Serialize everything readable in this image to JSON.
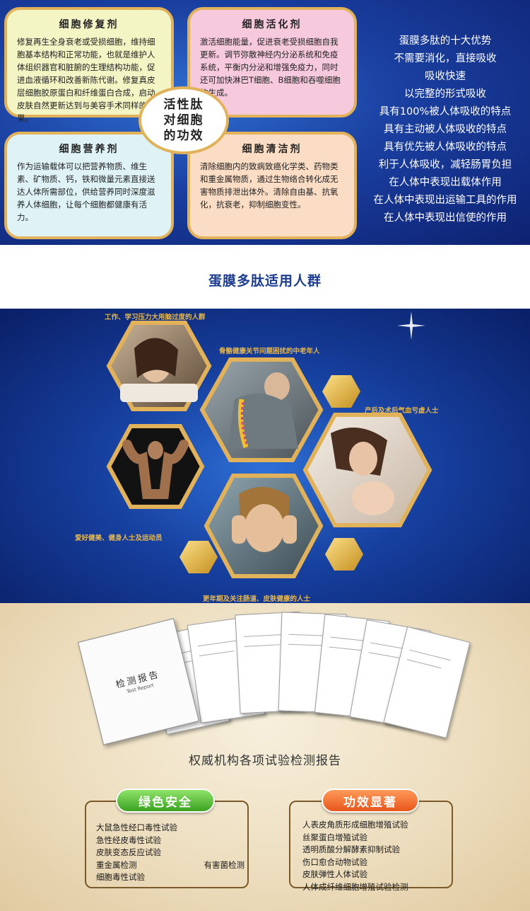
{
  "cells": {
    "repair": {
      "title": "细胞修复剂",
      "text": "修复再生全身衰老或受损细胞，维持细胞基本结构和正常功能，也就是维护人体组织器官和脏腑的生理结构功能，促进血液循环和改善新陈代谢。修复真皮层细胞胶原蛋白和纤维蛋白合成，启动皮肤自然更新达到与美容手术同样的效果。"
    },
    "activate": {
      "title": "细胞活化剂",
      "text": "激活细胞能量，促进衰老受损细胞自我更新。调节弥散神经内分泌系统和免疫系统，平衡内分泌和增强免疫力，同时还可加快淋巴T细胞、B细胞和吞噬细胞的生成。"
    },
    "nutrition": {
      "title": "细胞营养剂",
      "text": "作为运输载体可以把营养物质、维生素、矿物质、钙，铁和微量元素直接送达人体所需部位，供给营养同时深度滋养人体细胞，让每个细胞都健康有活力。"
    },
    "clean": {
      "title": "细胞清洁剂",
      "text": "清除细胞内的致病致癌化学类、药物类和重金属物质，通过生物络合转化成无害物质排泄出体外。清除自由基、抗氧化，抗衰老，抑制细胞变性。"
    },
    "center": [
      "活性肽",
      "对细胞",
      "的功效"
    ]
  },
  "advantages": {
    "title": "蛋膜多肽的十大优势",
    "items": [
      "不需要消化，直接吸收",
      "吸收快速",
      "以完整的形式吸收",
      "具有100%被人体吸收的特点",
      "具有主动被人体吸收的特点",
      "具有优先被人体吸收的特点",
      "利于人体吸收，减轻肠胃负担",
      "在人体中表现出载体作用",
      "在人体中表现出运输工具的作用",
      "在人体中表现出信使的作用"
    ]
  },
  "groups": {
    "title": "蛋膜多肽适用人群",
    "captions": [
      "工作、学习压力大用脑过度的人群",
      "骨骼健康关节问题困扰的中老年人",
      "产后及术后气血亏虚人士",
      "爱好健美、健身人士及运动员",
      "更年期及关注肠道、皮肤健康的人士"
    ]
  },
  "reports": {
    "cover_title": "检测报告",
    "cover_subtitle": "Test Report",
    "caption": "权威机构各项试验检测报告"
  },
  "safety": {
    "badge": "绿色安全",
    "items": [
      "大鼠急性经口毒性试验",
      "急性经皮毒性试验",
      "皮肤变态反应试验",
      "重金属检测",
      "细胞毒性试验"
    ],
    "extra": "有害菌检测"
  },
  "efficacy": {
    "badge": "功效显著",
    "items": [
      "人表皮角质形成细胞增殖试验",
      "丝聚蛋白增殖试验",
      "透明质酸分解酵素抑制试验",
      "伤口愈合动物试验",
      "皮肤弹性人体试验",
      "人体成纤维细胞增殖试验检测"
    ]
  },
  "colors": {
    "gold": "#e2b25a",
    "navy": "#1c3c90",
    "caption_gold": "#e9b84a"
  }
}
